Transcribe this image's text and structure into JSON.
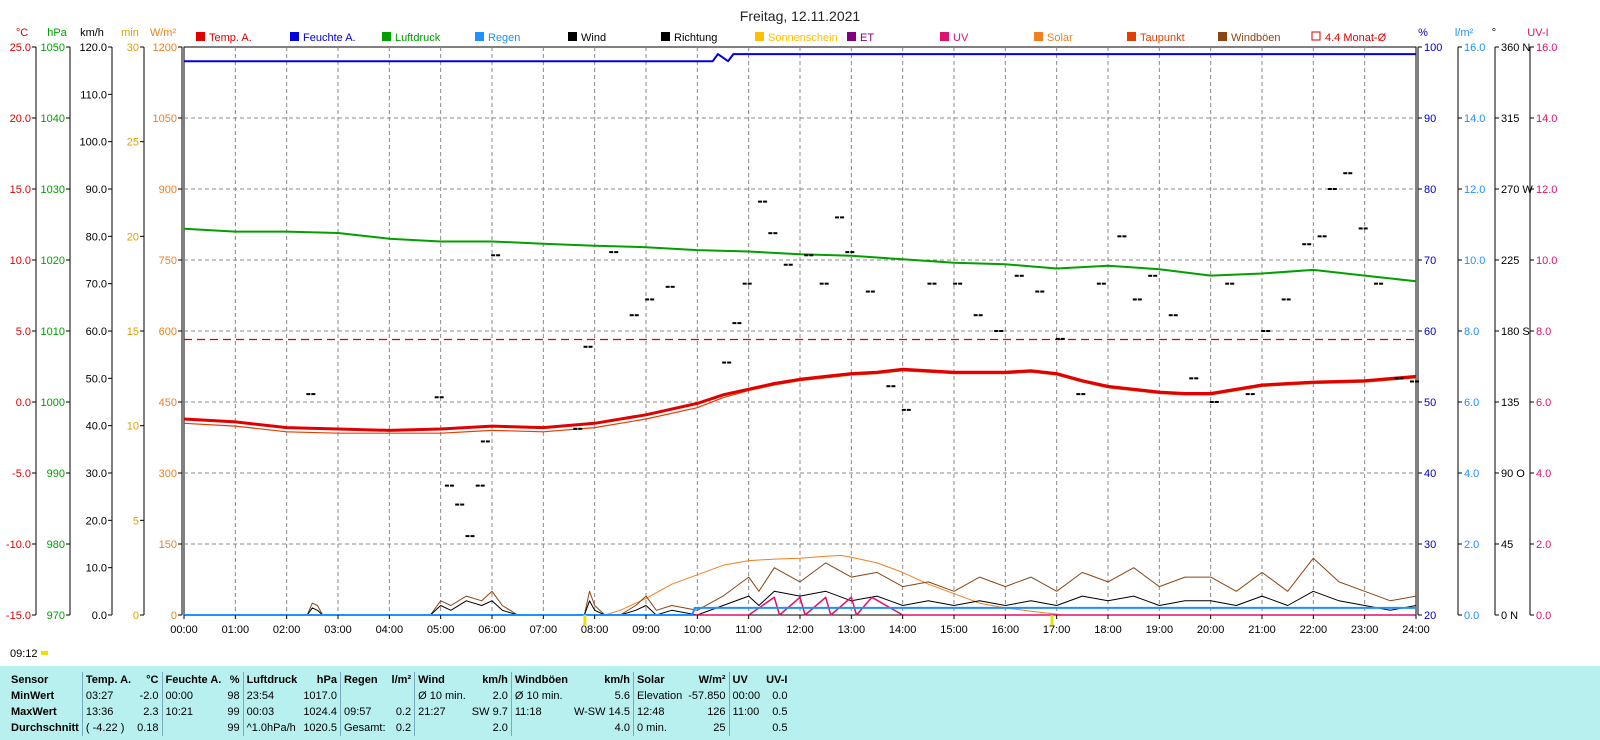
{
  "title": "Freitag, 12.11.2021",
  "current_time": "09:12",
  "legend": [
    {
      "label": "Temp. A.",
      "color": "#e00000"
    },
    {
      "label": "Feuchte A.",
      "color": "#0000e0"
    },
    {
      "label": "Luftdruck",
      "color": "#00a000"
    },
    {
      "label": "Regen",
      "color": "#1e90ff"
    },
    {
      "label": "Wind",
      "color": "#000000"
    },
    {
      "label": "Richtung",
      "color": "#000000"
    },
    {
      "label": "Sonnenschein",
      "color": "#ffc000"
    },
    {
      "label": "ET",
      "color": "#800080"
    },
    {
      "label": "UV",
      "color": "#e0106e"
    },
    {
      "label": "Solar",
      "color": "#f08020"
    },
    {
      "label": "Taupunkt",
      "color": "#e04000"
    },
    {
      "label": "Windböen",
      "color": "#8b4513"
    },
    {
      "label": "4.4 Monat-Ø",
      "color": "#e00000"
    }
  ],
  "axes": {
    "temp": {
      "unit": "°C",
      "ticks": [
        "25.0",
        "20.0",
        "15.0",
        "10.0",
        "5.0",
        "0.0",
        "-5.0",
        "-10.0",
        "-15.0"
      ],
      "color": "#e00000"
    },
    "pressure": {
      "unit": "hPa",
      "ticks": [
        "1050",
        "1040",
        "1030",
        "1020",
        "1010",
        "1000",
        "990",
        "980",
        "970"
      ],
      "color": "#00a000"
    },
    "wind": {
      "unit": "km/h",
      "ticks": [
        "120.0",
        "110.0",
        "100.0",
        "90.0",
        "80.0",
        "70.0",
        "60.0",
        "50.0",
        "40.0",
        "30.0",
        "20.0",
        "10.0",
        "0.0"
      ],
      "color": "#000000"
    },
    "sunmin": {
      "unit": "min",
      "ticks": [
        "30",
        "25",
        "20",
        "15",
        "10",
        "5",
        "0"
      ],
      "color": "#e0a000"
    },
    "solar": {
      "unit": "W/m²",
      "ticks": [
        "1200",
        "1050",
        "900",
        "750",
        "600",
        "450",
        "300",
        "150",
        "0"
      ],
      "color": "#f08020"
    },
    "humidity": {
      "unit": "%",
      "ticks": [
        "100",
        "90",
        "80",
        "70",
        "60",
        "50",
        "40",
        "30",
        "20"
      ],
      "color": "#0000c0"
    },
    "rain": {
      "unit": "l/m²",
      "ticks": [
        "16.0",
        "14.0",
        "12.0",
        "10.0",
        "8.0",
        "6.0",
        "4.0",
        "2.0",
        "0.0"
      ],
      "color": "#1e90ff"
    },
    "dir": {
      "unit": "°",
      "ticks": [
        "360 N",
        "315",
        "270 W",
        "225",
        "180 S",
        "135",
        "90 O",
        "45",
        "0 N"
      ],
      "color": "#000000"
    },
    "uv": {
      "unit": "UV-I",
      "ticks": [
        "16.0",
        "14.0",
        "12.0",
        "10.0",
        "8.0",
        "6.0",
        "4.0",
        "2.0",
        "0.0"
      ],
      "color": "#e0106e"
    }
  },
  "x_ticks": [
    "00:00",
    "01:00",
    "02:00",
    "03:00",
    "04:00",
    "05:00",
    "06:00",
    "07:00",
    "08:00",
    "09:00",
    "10:00",
    "11:00",
    "12:00",
    "13:00",
    "14:00",
    "15:00",
    "16:00",
    "17:00",
    "18:00",
    "19:00",
    "20:00",
    "21:00",
    "22:00",
    "23:00",
    "24:00"
  ],
  "chart_data": {
    "type": "line",
    "title": "Freitag, 12.11.2021",
    "x_unit": "hours",
    "xlim": [
      0,
      24
    ],
    "monthly_avg_temp": 4.4,
    "series": [
      {
        "name": "Temp. A.",
        "unit": "°C",
        "ylim": [
          -15,
          25
        ],
        "x": [
          0,
          1,
          2,
          3,
          4,
          5,
          6,
          7,
          8,
          9,
          10,
          10.5,
          11,
          11.5,
          12,
          12.5,
          13,
          13.5,
          14,
          15,
          16,
          16.5,
          17,
          17.5,
          18,
          18.5,
          19,
          19.5,
          20,
          21,
          22,
          23,
          24
        ],
        "y": [
          -1.2,
          -1.4,
          -1.8,
          -1.9,
          -2.0,
          -1.9,
          -1.7,
          -1.8,
          -1.5,
          -0.9,
          -0.1,
          0.5,
          0.9,
          1.3,
          1.6,
          1.8,
          2.0,
          2.1,
          2.3,
          2.1,
          2.1,
          2.2,
          2.0,
          1.5,
          1.1,
          0.9,
          0.7,
          0.6,
          0.6,
          1.2,
          1.4,
          1.5,
          1.8
        ]
      },
      {
        "name": "Taupunkt",
        "unit": "°C",
        "ylim": [
          -15,
          25
        ],
        "x": [
          0,
          1,
          2,
          3,
          4,
          5,
          6,
          7,
          8,
          9,
          10,
          10.5,
          11,
          11.5,
          12,
          12.5,
          13,
          13.5,
          14,
          15,
          16,
          16.5,
          17,
          17.5,
          18,
          18.5,
          19,
          19.5,
          20,
          21,
          22,
          23,
          24
        ],
        "y": [
          -1.5,
          -1.7,
          -2.1,
          -2.2,
          -2.2,
          -2.2,
          -2.0,
          -2.1,
          -1.8,
          -1.2,
          -0.4,
          0.3,
          0.8,
          1.2,
          1.5,
          1.7,
          1.9,
          2.0,
          2.2,
          2.0,
          2.0,
          2.1,
          1.9,
          1.4,
          1.0,
          0.8,
          0.6,
          0.5,
          0.5,
          1.1,
          1.3,
          1.4,
          1.7
        ]
      },
      {
        "name": "Feuchte A.",
        "unit": "%",
        "ylim": [
          20,
          100
        ],
        "x": [
          0,
          10.3,
          10.4,
          10.6,
          10.7,
          10.8,
          24
        ],
        "y": [
          98,
          98,
          99,
          98,
          99,
          99,
          99
        ]
      },
      {
        "name": "Luftdruck",
        "unit": "hPa",
        "ylim": [
          970,
          1050
        ],
        "x": [
          0,
          1,
          2,
          3,
          4,
          5,
          6,
          7,
          8,
          9,
          10,
          11,
          12,
          13,
          14,
          15,
          16,
          17,
          18,
          19,
          20,
          21,
          22,
          23,
          24
        ],
        "y": [
          1024.4,
          1024.0,
          1024.0,
          1023.8,
          1023.0,
          1022.6,
          1022.6,
          1022.3,
          1022.0,
          1021.8,
          1021.4,
          1021.2,
          1020.8,
          1020.6,
          1020.1,
          1019.6,
          1019.4,
          1018.8,
          1019.2,
          1018.7,
          1017.8,
          1018.1,
          1018.6,
          1017.8,
          1017.0
        ]
      },
      {
        "name": "Solar",
        "unit": "W/m²",
        "ylim": [
          0,
          1200
        ],
        "x": [
          0,
          8.2,
          8.5,
          9,
          9.5,
          10,
          10.5,
          11,
          11.5,
          12,
          12.5,
          12.8,
          13,
          13.5,
          14,
          14.5,
          15,
          15.5,
          16,
          16.5,
          17,
          17.1,
          24
        ],
        "y": [
          0,
          0,
          10,
          35,
          65,
          85,
          105,
          115,
          118,
          120,
          124,
          126,
          122,
          110,
          90,
          65,
          45,
          25,
          15,
          8,
          2,
          0,
          0
        ]
      },
      {
        "name": "Wind",
        "unit": "km/h",
        "ylim": [
          0,
          120
        ],
        "x": [
          0,
          2.4,
          2.5,
          2.6,
          2.7,
          4.8,
          5.0,
          5.2,
          5.5,
          5.8,
          6.0,
          6.2,
          6.5,
          7.8,
          7.9,
          8.0,
          8.2,
          8.5,
          8.8,
          9.0,
          9.2,
          9.5,
          10,
          10.5,
          11,
          11.2,
          11.5,
          12,
          12.5,
          13,
          13.5,
          14,
          14.5,
          15,
          15.5,
          16,
          16.5,
          17,
          17.5,
          18,
          18.5,
          19,
          19.5,
          20,
          20.5,
          21,
          21.5,
          22,
          22.5,
          23,
          23.5,
          24
        ],
        "y": [
          0,
          0,
          1.5,
          1.0,
          0,
          0,
          2,
          1,
          3,
          2,
          3,
          1,
          0,
          0,
          3,
          1,
          0,
          0,
          1,
          2,
          0,
          1,
          0,
          2,
          4,
          2,
          5,
          4,
          5,
          3,
          4,
          2,
          3,
          2,
          3,
          2,
          3,
          2,
          4,
          3,
          4,
          2,
          3,
          3,
          2,
          4,
          2,
          5,
          3,
          2,
          1,
          2
        ]
      },
      {
        "name": "Windböen",
        "unit": "km/h",
        "ylim": [
          0,
          120
        ],
        "x": [
          0,
          2.4,
          2.5,
          2.6,
          2.7,
          4.8,
          5.0,
          5.2,
          5.5,
          5.8,
          6.0,
          6.2,
          6.5,
          7.8,
          7.9,
          8.0,
          8.2,
          8.5,
          8.8,
          9.0,
          9.2,
          9.5,
          10,
          10.5,
          11,
          11.2,
          11.5,
          12,
          12.5,
          13,
          13.5,
          14,
          14.5,
          15,
          15.5,
          16,
          16.5,
          17,
          17.5,
          18,
          18.5,
          19,
          19.5,
          20,
          20.5,
          21,
          21.5,
          22,
          22.5,
          23,
          23.5,
          24
        ],
        "y": [
          0,
          0,
          2.5,
          2,
          0,
          0,
          3,
          2,
          4,
          3,
          5,
          2,
          0,
          0,
          5,
          2,
          0,
          0,
          2,
          4,
          1,
          2,
          1,
          4,
          8,
          5,
          10,
          7,
          11,
          8,
          9,
          6,
          7,
          5,
          8,
          6,
          8,
          5,
          9,
          7,
          10,
          6,
          8,
          8,
          5,
          9,
          5,
          12,
          7,
          5,
          3,
          4
        ]
      },
      {
        "name": "Richtung",
        "unit": "°",
        "type": "scatter",
        "ylim": [
          0,
          360
        ],
        "x": [
          2.5,
          5.0,
          5.2,
          5.4,
          5.6,
          5.8,
          5.9,
          6.1,
          7.7,
          7.9,
          8.4,
          8.8,
          9.1,
          9.5,
          10.6,
          10.8,
          11.0,
          11.3,
          11.5,
          11.8,
          12.2,
          12.5,
          12.8,
          13.0,
          13.4,
          13.8,
          14.1,
          14.6,
          15.1,
          15.5,
          15.9,
          16.3,
          16.7,
          17.1,
          17.5,
          17.9,
          18.3,
          18.6,
          18.9,
          19.3,
          19.7,
          20.1,
          20.4,
          20.8,
          21.1,
          21.5,
          21.9,
          22.2,
          22.4,
          22.7,
          23.0,
          23.3,
          23.7,
          24.0
        ],
        "y": [
          140,
          138,
          82,
          70,
          50,
          82,
          110,
          228,
          118,
          170,
          230,
          190,
          200,
          208,
          160,
          185,
          210,
          262,
          242,
          222,
          228,
          210,
          252,
          230,
          205,
          145,
          130,
          210,
          210,
          190,
          180,
          215,
          205,
          175,
          140,
          210,
          240,
          200,
          215,
          190,
          150,
          135,
          210,
          140,
          180,
          200,
          235,
          240,
          270,
          280,
          245,
          210,
          150,
          148
        ]
      },
      {
        "name": "UV",
        "unit": "UV-I",
        "ylim": [
          0,
          16
        ],
        "x": [
          0,
          11,
          11.5,
          11.6,
          12,
          12.1,
          12.5,
          12.6,
          13,
          13.1,
          13.4,
          14,
          24
        ],
        "y": [
          0,
          0,
          0.5,
          0,
          0.5,
          0,
          0.5,
          0,
          0.5,
          0,
          0.5,
          0,
          0
        ]
      },
      {
        "name": "Regen",
        "unit": "l/m²",
        "ylim": [
          0,
          16
        ],
        "x": [
          0,
          9.9,
          9.95,
          24
        ],
        "y": [
          0,
          0,
          0.2,
          0.2
        ]
      }
    ]
  },
  "stats": {
    "headers": [
      "Sensor",
      "Temp. A.",
      "°C",
      "Feuchte A.",
      "%",
      "Luftdruck",
      "hPa",
      "Regen",
      "l/m²",
      "Wind",
      "km/h",
      "Windböen",
      "km/h",
      "Solar",
      "W/m²",
      "UV",
      "UV-I"
    ],
    "rows": [
      {
        "label": "MinWert",
        "cells": [
          "03:27",
          "-2.0",
          "00:00",
          "98",
          "23:54",
          "1017.0",
          "",
          "",
          "Ø 10 min.",
          "2.0",
          "Ø 10 min.",
          "5.6",
          "Elevation",
          "-57.850",
          "00:00",
          "0.0"
        ]
      },
      {
        "label": "MaxWert",
        "cells": [
          "13:36",
          "2.3",
          "10:21",
          "99",
          "00:03",
          "1024.4",
          "09:57",
          "0.2",
          "21:27",
          "SW 9.7",
          "11:18",
          "W-SW 14.5",
          "12:48",
          "126",
          "11:00",
          "0.5"
        ]
      },
      {
        "label": "Durchschnitt",
        "cells": [
          "( -4.22 )",
          "0.18",
          "",
          "99",
          "^1.0hPa/h",
          "1020.5",
          "Gesamt:",
          "0.2",
          "",
          "2.0",
          "",
          "4.0",
          "0 min.",
          "25",
          "",
          "0.5"
        ]
      }
    ]
  }
}
